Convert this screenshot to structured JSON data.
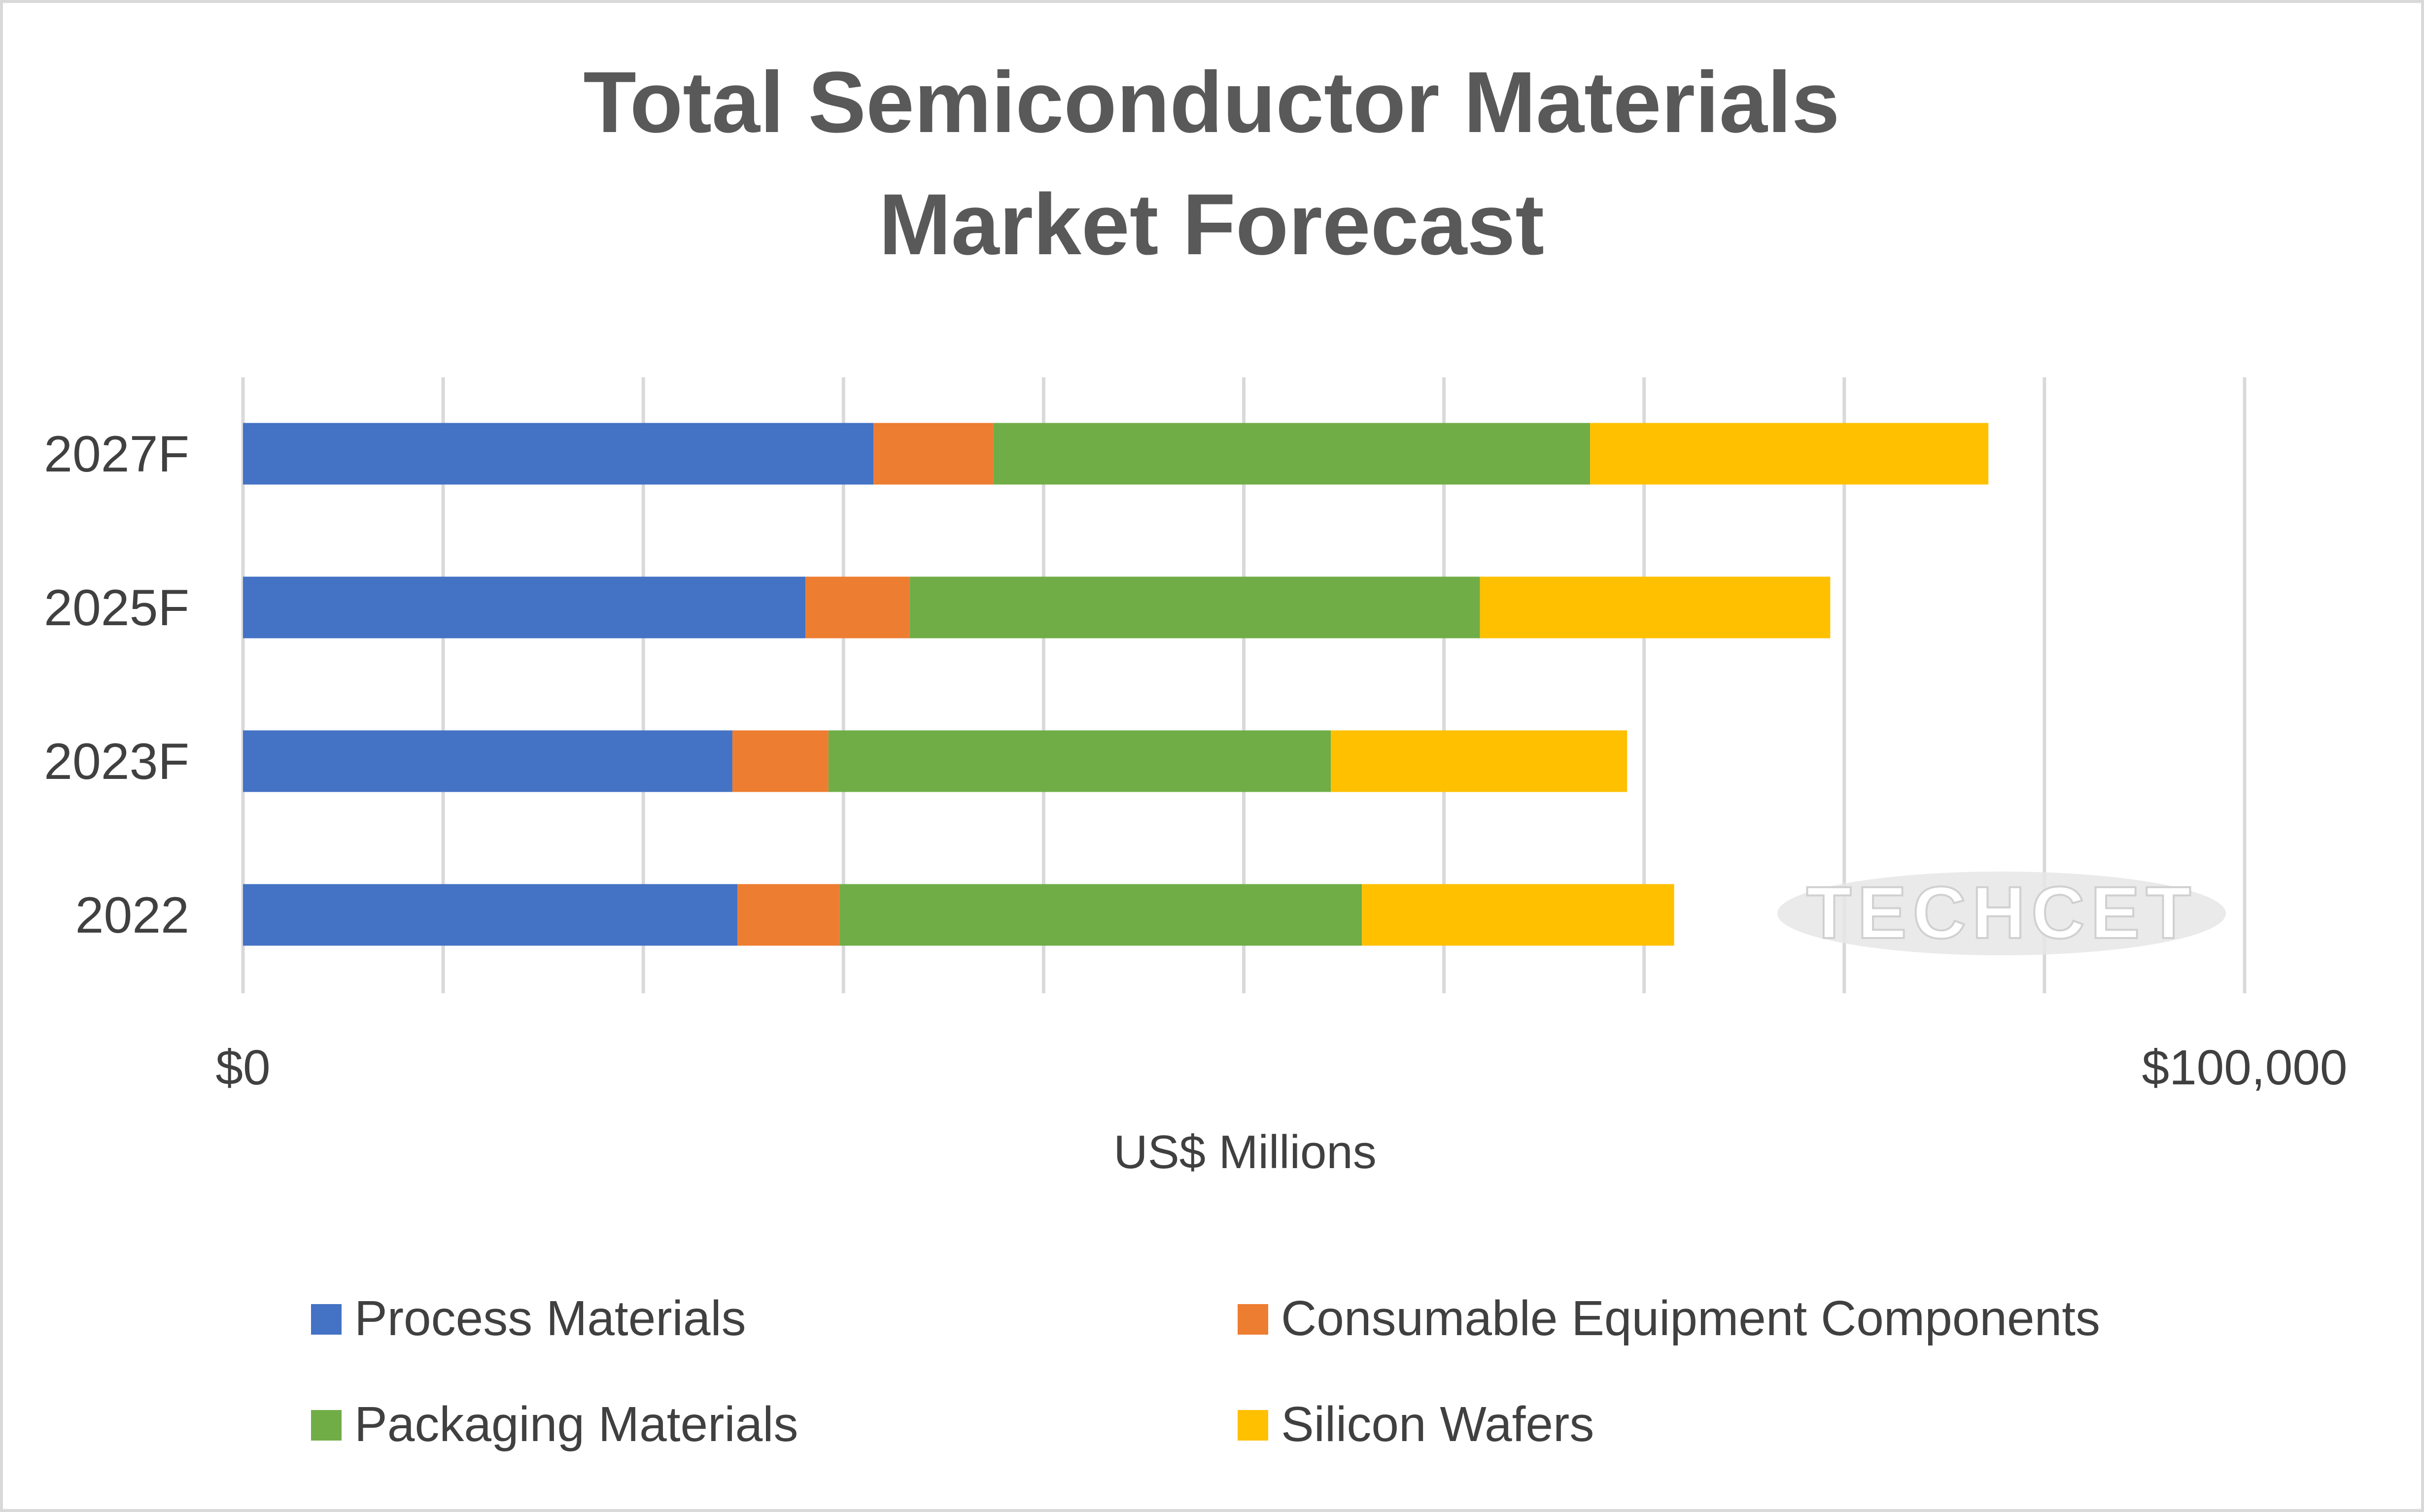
{
  "chart_data": {
    "type": "bar",
    "orientation": "horizontal",
    "stacked": true,
    "title_lines": [
      "Total Semiconductor Materials",
      "Market Forecast"
    ],
    "xlabel": "US$ Millions",
    "ylabel": "",
    "xlim": [
      0,
      100000
    ],
    "x_gridline_step": 10000,
    "x_tick_labels": [
      "$0",
      "$100,000"
    ],
    "grid": true,
    "legend_position": "bottom",
    "categories": [
      "2022",
      "2023F",
      "2025F",
      "2027F"
    ],
    "series": [
      {
        "name": "Process Materials",
        "color": "#4472c4",
        "values": [
          24700,
          24450,
          28100,
          31500
        ]
      },
      {
        "name": "Consumable Equipment Components",
        "color": "#ed7d31",
        "values": [
          5100,
          4800,
          5200,
          6000
        ]
      },
      {
        "name": "Packaging Materials",
        "color": "#70ad47",
        "values": [
          26100,
          25100,
          28500,
          29800
        ]
      },
      {
        "name": "Silicon Wafers",
        "color": "#ffc000",
        "values": [
          15600,
          14800,
          17500,
          19900
        ]
      }
    ],
    "watermark": "TECHCET"
  },
  "colors": {
    "title": "#595959",
    "axis_text": "#404040",
    "gridline": "#d9d9d9",
    "legend_text": "#404040"
  }
}
